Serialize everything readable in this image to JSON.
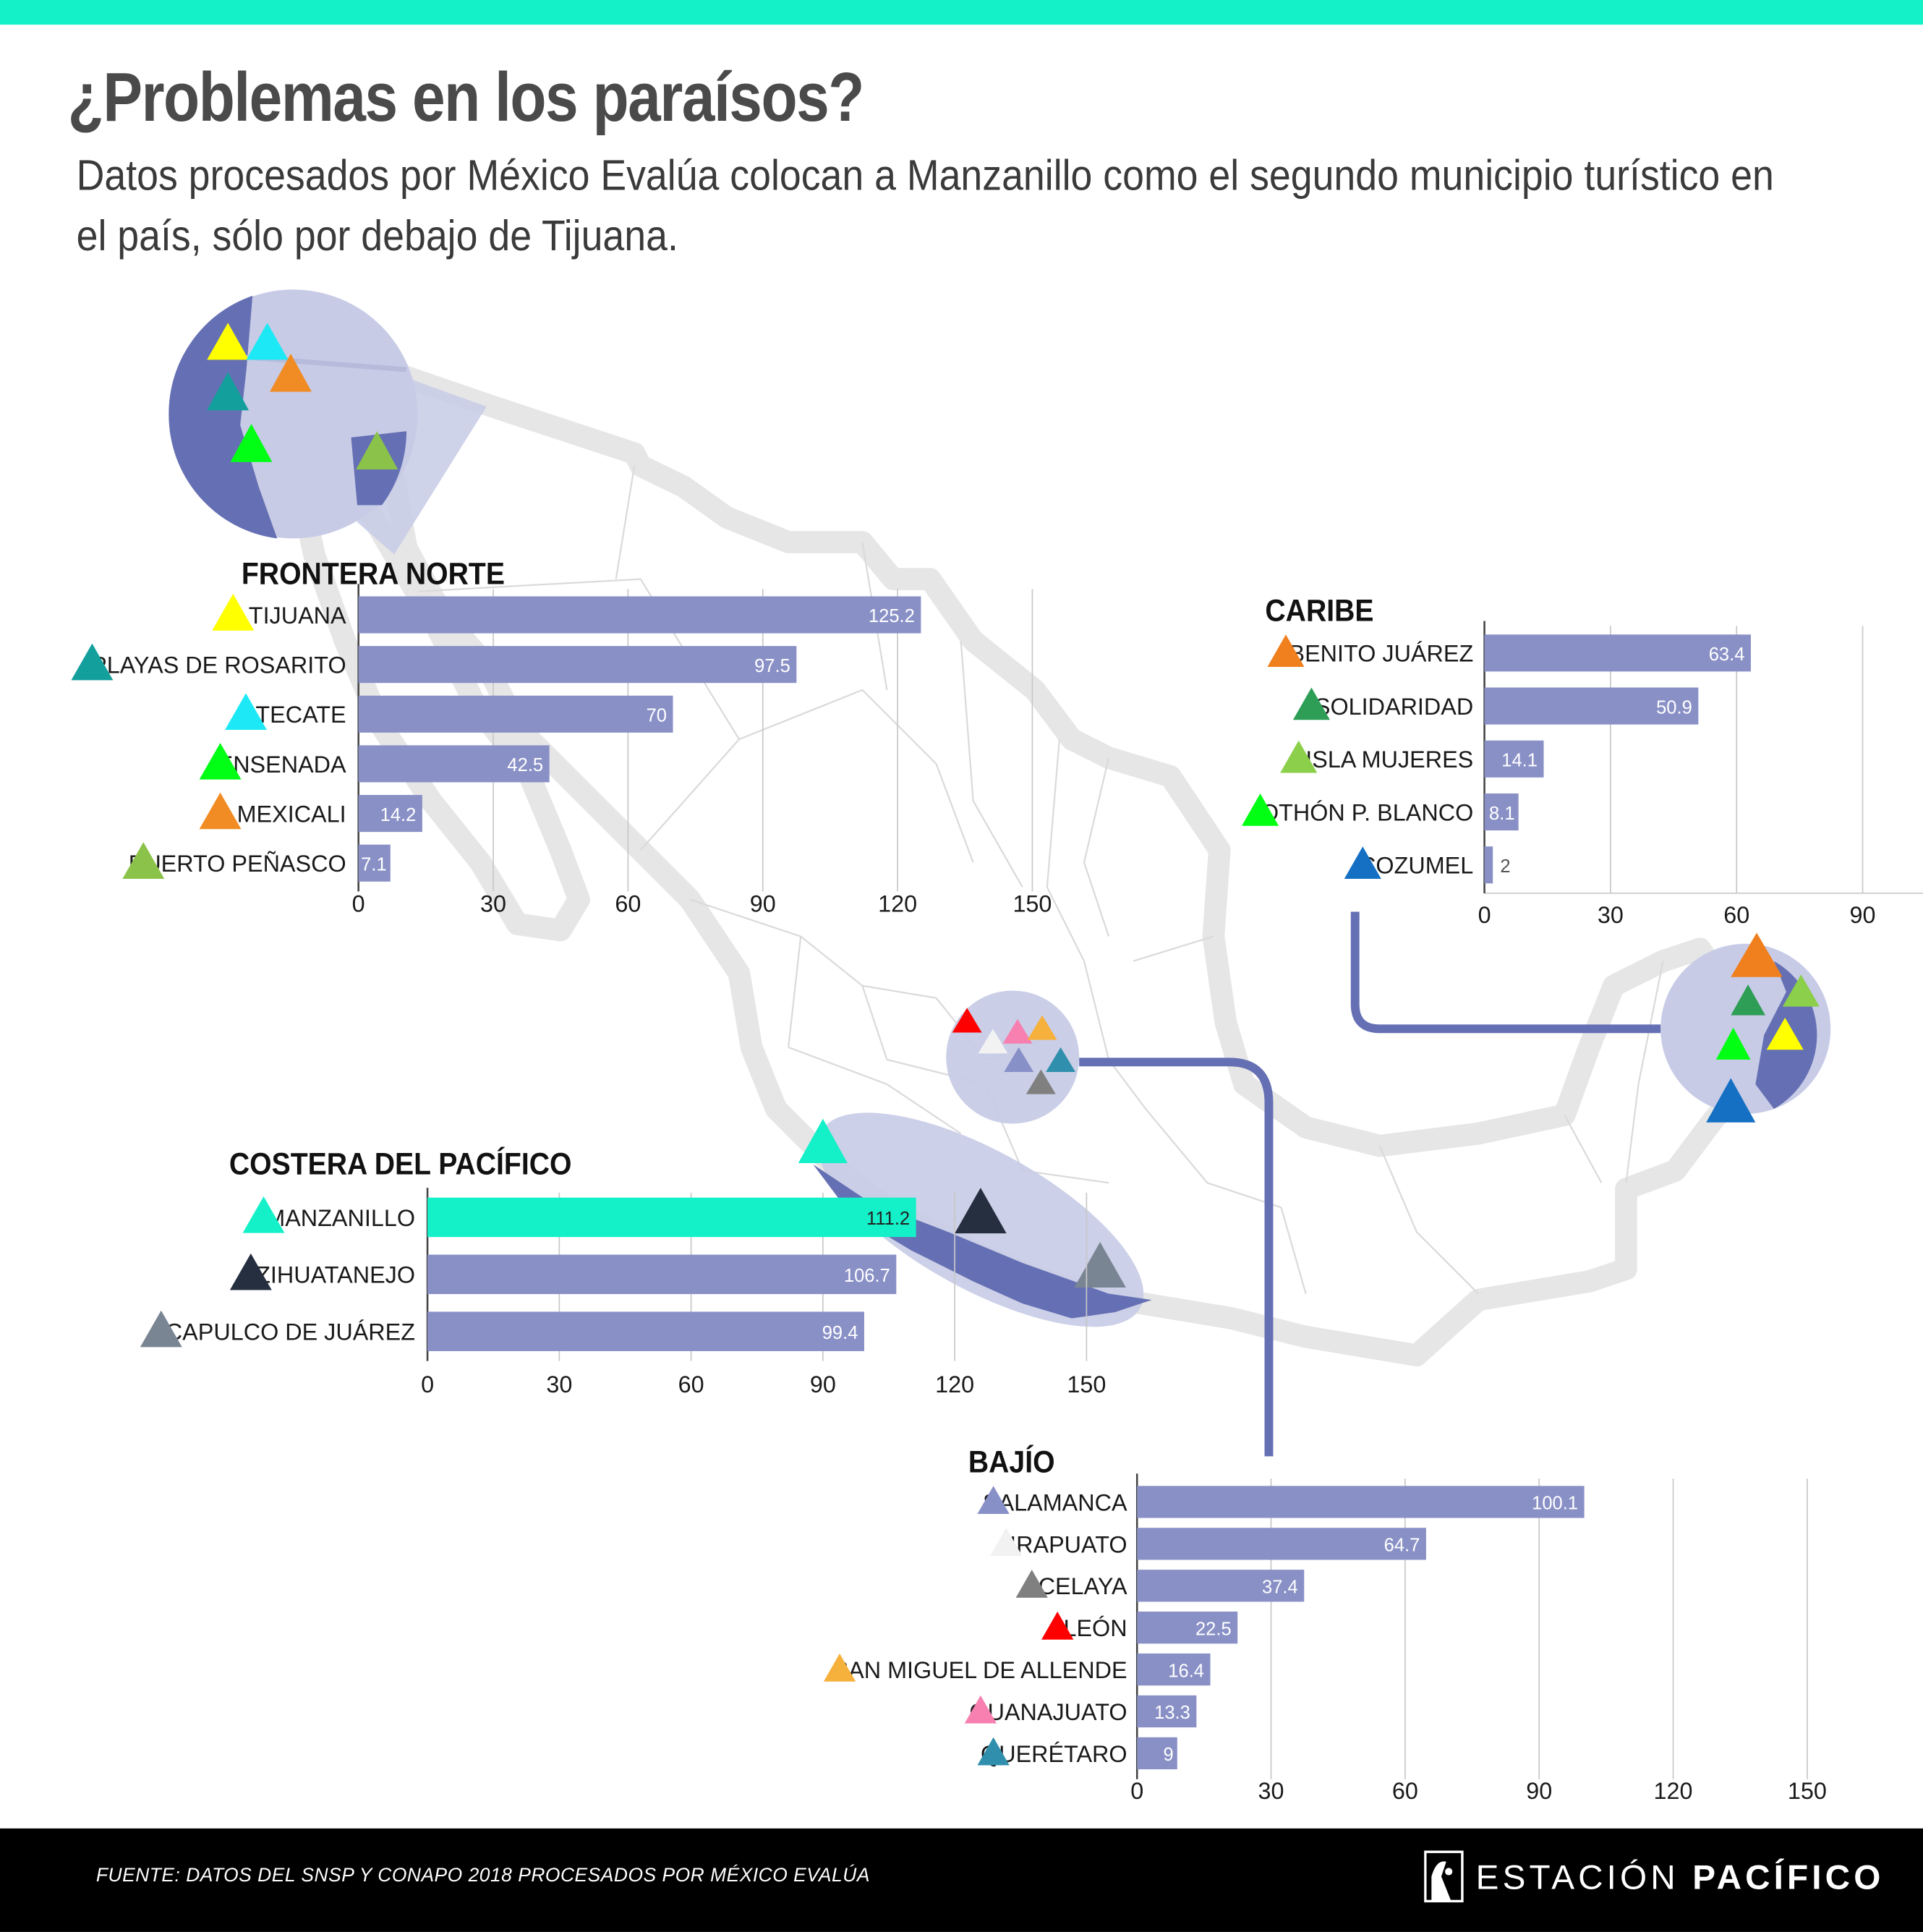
{
  "header": {
    "title": "¿Problemas en los paraísos?",
    "subtitle": "Datos procesados por México Evalúa colocan a Manzanillo como el segundo municipio turístico en el país, sólo por debajo de Tijuana."
  },
  "colors": {
    "top_bar": "#14f0c8",
    "bar": "#8990c6",
    "bar_highlight": "#14f0c8",
    "bar_label": "#ffffff",
    "region_title": "#111111",
    "region_fill_light": "#c7cbe6",
    "region_fill_dark": "#6570b4",
    "map_border": "#e6e6e6",
    "connector": "#6570b4",
    "footer_bg": "#000000"
  },
  "chart_data": [
    {
      "type": "bar",
      "orientation": "horizontal",
      "title": "FRONTERA NORTE",
      "categories": [
        "TIJUANA",
        "PLAYAS DE ROSARITO",
        "TECATE",
        "ENSENADA",
        "MEXICALI",
        "PUERTO PEÑASCO"
      ],
      "values": [
        125.2,
        97.5,
        70,
        42.5,
        14.2,
        7.1
      ],
      "value_labels": [
        "125.2",
        "97.5",
        "70",
        "42.5",
        "14.2",
        "7.1"
      ],
      "marker_colors": [
        "#ffff00",
        "#139f9c",
        "#1ce9f5",
        "#00ff15",
        "#f18b24",
        "#8bc34a"
      ],
      "highlight": [],
      "xticks": [
        "0",
        "30",
        "60",
        "90",
        "120",
        "150"
      ],
      "xlim": [
        0,
        150
      ],
      "grid": true
    },
    {
      "type": "bar",
      "orientation": "horizontal",
      "title": "CARIBE",
      "categories": [
        "BENITO JUÁREZ",
        "SOLIDARIDAD",
        "ISLA MUJERES",
        "OTHÓN P. BLANCO",
        "COZUMEL"
      ],
      "values": [
        63.4,
        50.9,
        14.1,
        8.1,
        2
      ],
      "value_labels": [
        "63.4",
        "50.9",
        "14.1",
        "8.1",
        "2"
      ],
      "marker_colors": [
        "#f07f1e",
        "#2e9e56",
        "#8bcf4a",
        "#00ff12",
        "#1570c4"
      ],
      "highlight": [],
      "xticks": [
        "0",
        "30",
        "60",
        "90"
      ],
      "xlim": [
        0,
        100
      ],
      "grid": true
    },
    {
      "type": "bar",
      "orientation": "horizontal",
      "title": "COSTERA DEL PACÍFICO",
      "categories": [
        "MANZANILLO",
        "ZIHUATANEJO",
        "ACAPULCO DE JUÁREZ"
      ],
      "values": [
        111.2,
        106.7,
        99.4
      ],
      "value_labels": [
        "111.2",
        "106.7",
        "99.4"
      ],
      "marker_colors": [
        "#14f0c8",
        "#262f40",
        "#7a8594"
      ],
      "highlight": [
        0
      ],
      "xticks": [
        "0",
        "30",
        "60",
        "90",
        "120",
        "150"
      ],
      "xlim": [
        0,
        150
      ],
      "grid": true
    },
    {
      "type": "bar",
      "orientation": "horizontal",
      "title": "BAJÍO",
      "categories": [
        "SALAMANCA",
        "IRAPUATO",
        "CELAYA",
        "LEÓN",
        "SAN MIGUEL DE ALLENDE",
        "GUANAJUATO",
        "QUERÉTARO"
      ],
      "values": [
        100.1,
        64.7,
        37.4,
        22.5,
        16.4,
        13.3,
        9
      ],
      "value_labels": [
        "100.1",
        "64.7",
        "37.4",
        "22.5",
        "16.4",
        "13.3",
        "9"
      ],
      "marker_colors": [
        "#8890c8",
        "#f2f2f2",
        "#808080",
        "#ff0000",
        "#f6b03c",
        "#f780b0",
        "#2f8fad"
      ],
      "highlight": [],
      "xticks": [
        "0",
        "30",
        "60",
        "90",
        "120",
        "150"
      ],
      "xlim": [
        0,
        150
      ],
      "grid": true
    }
  ],
  "footer": {
    "source": "FUENTE: DATOS DEL SNSP Y CONAPO 2018 PROCESADOS POR MÉXICO EVALÚA",
    "brand_light": "ESTACIÓN",
    "brand_bold": "PACÍFICO",
    "brand_mark": "logo-mark-icon"
  }
}
